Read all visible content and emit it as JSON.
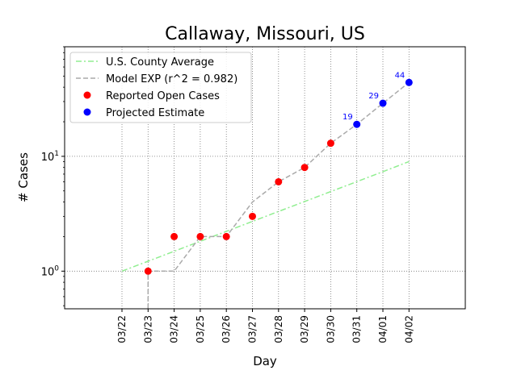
{
  "chart_data": {
    "type": "line",
    "title": "Callaway, Missouri, US",
    "xlabel": "Day",
    "ylabel": "# Cases",
    "y_scale": "log",
    "ylim": [
      0.47,
      90
    ],
    "y_ticks": [
      {
        "value": 1,
        "label": "10^0"
      },
      {
        "value": 10,
        "label": "10^1"
      }
    ],
    "categories": [
      "03/22",
      "03/23",
      "03/24",
      "03/25",
      "03/26",
      "03/27",
      "03/28",
      "03/29",
      "03/30",
      "03/31",
      "04/01",
      "04/02"
    ],
    "grid": true,
    "legend_position": "top-left",
    "series": [
      {
        "name": "U.S. County Average",
        "kind": "line",
        "style": "dashdot",
        "color": "#90ee90",
        "x": [
          "03/22",
          "03/23",
          "03/24",
          "03/25",
          "03/26",
          "03/27",
          "03/28",
          "03/29",
          "03/30",
          "03/31",
          "04/01",
          "04/02"
        ],
        "values": [
          1.0,
          1.22,
          1.49,
          1.82,
          2.22,
          2.71,
          3.31,
          4.04,
          4.93,
          6.02,
          7.35,
          9.0
        ]
      },
      {
        "name": "Model EXP (r^2 = 0.982)",
        "kind": "line",
        "style": "dashed",
        "color": "#aaaaaa",
        "x": [
          "03/23",
          "03/23",
          "03/24",
          "03/25",
          "03/26",
          "03/27",
          "03/28",
          "03/29",
          "03/30",
          "03/31",
          "04/01",
          "04/02"
        ],
        "values": [
          0.45,
          1,
          1,
          2,
          2,
          4,
          6,
          8,
          13,
          19,
          29,
          44
        ]
      },
      {
        "name": "Reported Open Cases",
        "kind": "scatter",
        "color": "#ff0000",
        "x": [
          "03/23",
          "03/24",
          "03/25",
          "03/26",
          "03/27",
          "03/28",
          "03/29",
          "03/30"
        ],
        "values": [
          1,
          2,
          2,
          2,
          3,
          6,
          8,
          13
        ]
      },
      {
        "name": "Projected Estimate",
        "kind": "scatter",
        "color": "#0000ff",
        "x": [
          "03/31",
          "04/01",
          "04/02"
        ],
        "values": [
          19,
          29,
          44
        ],
        "labels": [
          "19",
          "29",
          "44"
        ]
      }
    ]
  }
}
